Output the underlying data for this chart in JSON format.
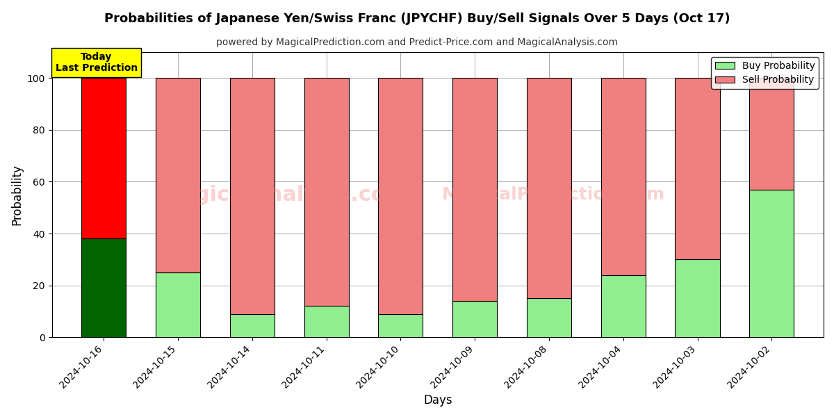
{
  "title": "Probabilities of Japanese Yen/Swiss Franc (JPYCHF) Buy/Sell Signals Over 5 Days (Oct 17)",
  "subtitle": "powered by MagicalPrediction.com and Predict-Price.com and MagicalAnalysis.com",
  "xlabel": "Days",
  "ylabel": "Probability",
  "categories": [
    "2024-10-16",
    "2024-10-15",
    "2024-10-14",
    "2024-10-11",
    "2024-10-10",
    "2024-10-09",
    "2024-10-08",
    "2024-10-04",
    "2024-10-03",
    "2024-10-02"
  ],
  "buy_values": [
    38,
    25,
    9,
    12,
    9,
    14,
    15,
    24,
    30,
    57
  ],
  "sell_values": [
    62,
    75,
    91,
    88,
    91,
    86,
    85,
    76,
    70,
    43
  ],
  "buy_colors_today": "#006400",
  "sell_colors_today": "#ff0000",
  "buy_color": "#90EE90",
  "sell_color": "#F08080",
  "today_label_bg": "#ffff00",
  "today_label_text": "Today\nLast Prediction",
  "legend_buy": "Buy Probability",
  "legend_sell": "Sell Probability",
  "ylim": [
    0,
    110
  ],
  "dashed_line_y": 110,
  "watermark_text1": "MagicalAnalysis.com",
  "watermark_text2": "MagicalPrediction.com",
  "background_color": "#ffffff",
  "grid_color": "#aaaaaa",
  "bar_edge_color": "#000000",
  "bar_width": 0.6
}
